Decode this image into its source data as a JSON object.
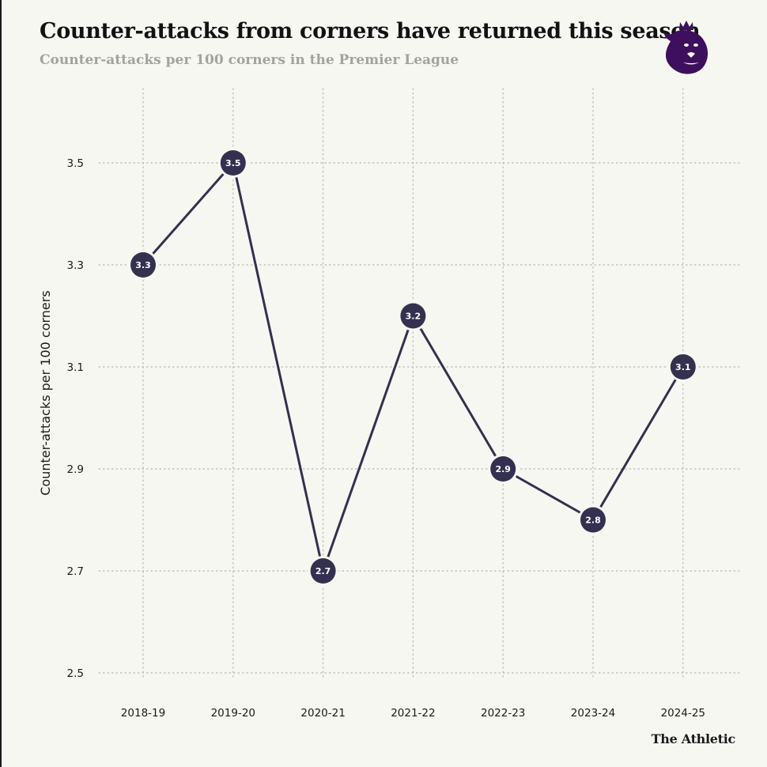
{
  "header": {
    "title": "Counter-attacks from corners have returned this season",
    "subtitle": "Counter-attacks per 100 corners in the Premier League"
  },
  "footer": {
    "brand": "The Athletic"
  },
  "logo": {
    "icon": "premier-league-lion-icon",
    "color": "#3d0f5c"
  },
  "colors": {
    "background": "#f7f7f2",
    "line": "#34304f",
    "marker": "#34304f",
    "grid": "#b9b9b2"
  },
  "chart_data": {
    "type": "line",
    "title": "Counter-attacks from corners have returned this season",
    "subtitle": "Counter-attacks per 100 corners in the Premier League",
    "xlabel": "",
    "ylabel": "Counter-attacks per 100 corners",
    "categories": [
      "2018-19",
      "2019-20",
      "2020-21",
      "2021-22",
      "2022-23",
      "2023-24",
      "2024-25"
    ],
    "values": [
      3.3,
      3.5,
      2.7,
      3.2,
      2.9,
      2.8,
      3.1
    ],
    "ylim": [
      2.5,
      3.5
    ],
    "yticks": [
      2.5,
      2.7,
      2.9,
      3.1,
      3.3,
      3.5
    ],
    "ytick_labels": [
      "2.5",
      "2.7",
      "2.9",
      "3.1",
      "3.3",
      "3.5"
    ],
    "data_labels": [
      "3.3",
      "3.5",
      "2.7",
      "3.2",
      "2.9",
      "2.8",
      "3.1"
    ],
    "grid": "dotted, both axes",
    "legend": "none"
  }
}
